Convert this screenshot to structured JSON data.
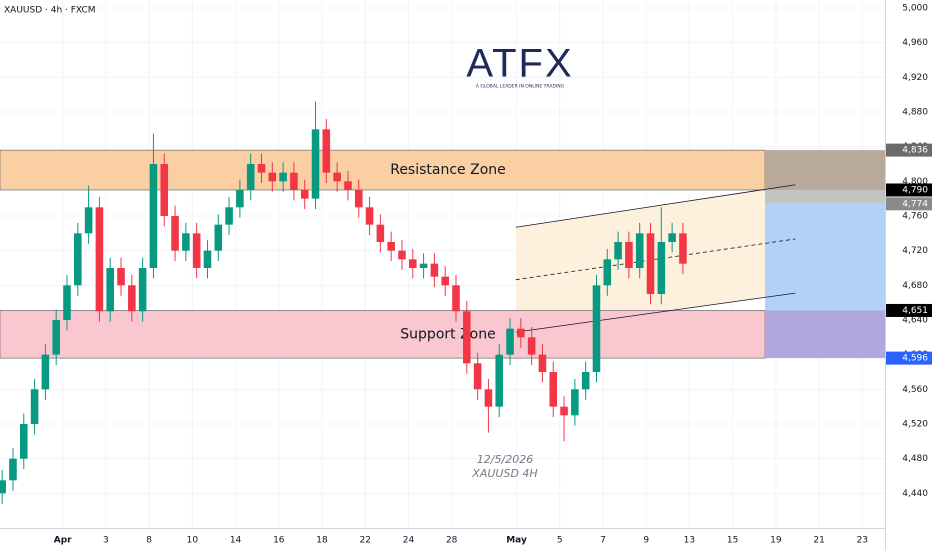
{
  "chart_data": {
    "type": "candlestick",
    "title": "XAUUSD · 4h · FXCM",
    "logo": {
      "name": "ATFX",
      "tagline": "A GLOBAL LEADER IN ONLINE TRADING"
    },
    "annotations": [
      "12/5/2026",
      "XAUUSD 4H"
    ],
    "up_color": "#089981",
    "down_color": "#f23645",
    "grid": true,
    "x": [
      -2.8,
      -2.3,
      -1.8,
      -1.3,
      -0.8,
      -0.3,
      0.2,
      0.7,
      1.2,
      1.7,
      2.2,
      2.7,
      3.2,
      3.7,
      4.2,
      4.7,
      5.2,
      5.7,
      6.2,
      6.7,
      7.2,
      7.7,
      8.2,
      8.7,
      9.2,
      9.7,
      10.2,
      10.7,
      11.2,
      11.7,
      12.2,
      12.7,
      13.2,
      13.7,
      14.2,
      14.7,
      15.2,
      15.7,
      16.2,
      16.7,
      17.2,
      17.7,
      18.2,
      18.7,
      19.2,
      19.7,
      20.2,
      20.7,
      21.2,
      21.7,
      22.2,
      22.7,
      23.2,
      23.7,
      24.2,
      24.7,
      25.2,
      25.7,
      26.2,
      26.7,
      27.2,
      27.7,
      28.2,
      28.7
    ],
    "open": [
      4440,
      4455,
      4480,
      4520,
      4560,
      4600,
      4640,
      4680,
      4740,
      4770,
      4650,
      4700,
      4680,
      4650,
      4700,
      4820,
      4760,
      4720,
      4740,
      4700,
      4720,
      4750,
      4770,
      4790,
      4820,
      4810,
      4800,
      4810,
      4790,
      4780,
      4860,
      4810,
      4800,
      4790,
      4770,
      4750,
      4730,
      4720,
      4710,
      4700,
      4705,
      4690,
      4680,
      4650,
      4590,
      4560,
      4540,
      4600,
      4630,
      4620,
      4600,
      4580,
      4540,
      4530,
      4560,
      4580,
      4680,
      4710,
      4730,
      4700,
      4740,
      4670,
      4730,
      4740
    ],
    "high": [
      4467,
      4492,
      4532,
      4572,
      4612,
      4652,
      4692,
      4752,
      4795,
      4782,
      4712,
      4712,
      4692,
      4712,
      4855,
      4832,
      4772,
      4752,
      4752,
      4732,
      4762,
      4782,
      4802,
      4832,
      4832,
      4822,
      4822,
      4822,
      4802,
      4892,
      4872,
      4822,
      4812,
      4802,
      4782,
      4762,
      4742,
      4732,
      4722,
      4717,
      4717,
      4702,
      4692,
      4662,
      4602,
      4572,
      4612,
      4642,
      4642,
      4632,
      4612,
      4592,
      4552,
      4572,
      4592,
      4692,
      4722,
      4742,
      4742,
      4752,
      4752,
      4770,
      4752,
      4752
    ],
    "low": [
      4428,
      4443,
      4468,
      4508,
      4548,
      4588,
      4628,
      4668,
      4728,
      4638,
      4638,
      4668,
      4638,
      4638,
      4688,
      4748,
      4708,
      4708,
      4688,
      4688,
      4708,
      4738,
      4758,
      4778,
      4798,
      4788,
      4788,
      4778,
      4768,
      4768,
      4798,
      4788,
      4778,
      4758,
      4738,
      4718,
      4708,
      4698,
      4688,
      4688,
      4678,
      4668,
      4638,
      4578,
      4548,
      4510,
      4528,
      4588,
      4608,
      4588,
      4568,
      4528,
      4500,
      4518,
      4548,
      4568,
      4668,
      4698,
      4688,
      4688,
      4658,
      4658,
      4718,
      4693
    ],
    "close": [
      4455,
      4480,
      4520,
      4560,
      4600,
      4640,
      4680,
      4740,
      4770,
      4650,
      4700,
      4680,
      4650,
      4700,
      4820,
      4760,
      4720,
      4740,
      4700,
      4720,
      4750,
      4770,
      4790,
      4820,
      4810,
      4800,
      4810,
      4790,
      4780,
      4860,
      4810,
      4800,
      4790,
      4770,
      4750,
      4730,
      4720,
      4710,
      4700,
      4705,
      4690,
      4680,
      4650,
      4590,
      4560,
      4540,
      4600,
      4630,
      4620,
      4600,
      4580,
      4540,
      4530,
      4560,
      4580,
      4680,
      4710,
      4730,
      4700,
      4740,
      4670,
      4730,
      4740,
      4705
    ],
    "xlim": [
      -2.9,
      38.05
    ],
    "xticks": [
      {
        "value": 0,
        "label": "Apr"
      },
      {
        "value": 2,
        "label": "3"
      },
      {
        "value": 4,
        "label": "8"
      },
      {
        "value": 6,
        "label": "10"
      },
      {
        "value": 8,
        "label": "14"
      },
      {
        "value": 10,
        "label": "16"
      },
      {
        "value": 12,
        "label": "18"
      },
      {
        "value": 14,
        "label": "22"
      },
      {
        "value": 16,
        "label": "24"
      },
      {
        "value": 18,
        "label": "28"
      },
      {
        "value": 21,
        "label": "May"
      },
      {
        "value": 23,
        "label": "5"
      },
      {
        "value": 25,
        "label": "7"
      },
      {
        "value": 27,
        "label": "9"
      },
      {
        "value": 29,
        "label": "13"
      },
      {
        "value": 31,
        "label": "15"
      },
      {
        "value": 33,
        "label": "19"
      },
      {
        "value": 35,
        "label": "21"
      },
      {
        "value": 37,
        "label": "23"
      }
    ],
    "ylim": [
      4400,
      5009.2
    ],
    "yticks": [
      {
        "value": 5000,
        "label": "5,000"
      },
      {
        "value": 4960,
        "label": "4,960"
      },
      {
        "value": 4920,
        "label": "4,920"
      },
      {
        "value": 4880,
        "label": "4,880"
      },
      {
        "value": 4840,
        "label": "4,840"
      },
      {
        "value": 4800,
        "label": "4,800"
      },
      {
        "value": 4760,
        "label": "4,760"
      },
      {
        "value": 4720,
        "label": "4,720"
      },
      {
        "value": 4680,
        "label": "4,680"
      },
      {
        "value": 4640,
        "label": "4,640"
      },
      {
        "value": 4600,
        "label": "4,600"
      },
      {
        "value": 4560,
        "label": "4,560"
      },
      {
        "value": 4520,
        "label": "4,520"
      },
      {
        "value": 4480,
        "label": "4,480"
      },
      {
        "value": 4440,
        "label": "4,440"
      }
    ],
    "zones": [
      {
        "name": "Resistance Zone",
        "low": 4790,
        "high": 4836,
        "color": "#f9cfa3",
        "end_color": "#b8a99a"
      },
      {
        "name": "Support Zone",
        "low": 4596,
        "high": 4651,
        "color": "#f9c7cf",
        "end_color": "#b0a8dc"
      }
    ],
    "projection": {
      "start": 32.5,
      "boxes": [
        {
          "low": 4651,
          "high": 4774,
          "color": "#b3d1f7"
        },
        {
          "low": 4774,
          "high": 4790,
          "color": "#c3c3c3"
        }
      ]
    },
    "channel": {
      "x": [
        20.97,
        33.9
      ],
      "upper": [
        4747,
        4796
      ],
      "lower": [
        4626,
        4671
      ],
      "fill": "#fdf1de",
      "fill_end": 32.5
    },
    "price_markers": [
      {
        "value": 4836,
        "label": "4,836",
        "color": "#6b6b6b"
      },
      {
        "value": 4790,
        "label": "4,790",
        "color": "#000000"
      },
      {
        "value": 4774,
        "label": "4,774",
        "color": "#8a8a8a"
      },
      {
        "value": 4651,
        "label": "4,651",
        "color": "#000000"
      },
      {
        "value": 4596,
        "label": "4,596",
        "color": "#2962ff"
      }
    ]
  }
}
